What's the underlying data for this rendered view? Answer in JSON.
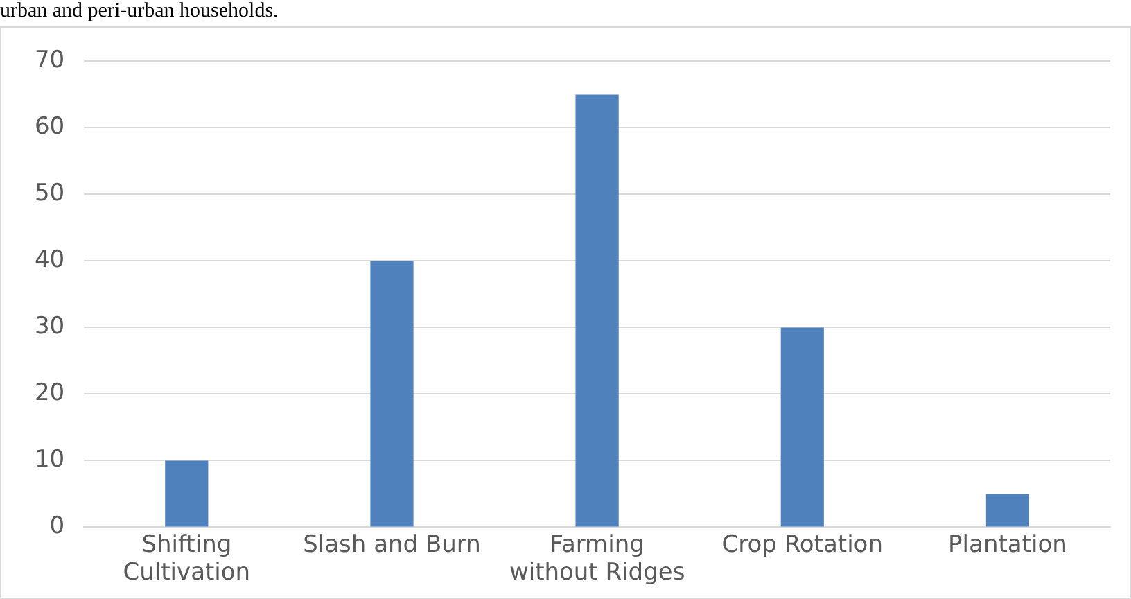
{
  "chart_data": {
    "type": "bar",
    "annotations": [
      "urban and peri-urban households."
    ],
    "categories": [
      "Shifting Cultivation",
      "Slash and Burn",
      "Farming without Ridges",
      "Crop Rotation",
      "Plantation"
    ],
    "values": [
      10,
      40,
      65,
      30,
      5
    ],
    "color": "#4f81bd",
    "ylim": [
      0,
      70
    ],
    "yticks": [
      0,
      10,
      20,
      30,
      40,
      50,
      60,
      70
    ],
    "grid": "y",
    "legend": false
  }
}
